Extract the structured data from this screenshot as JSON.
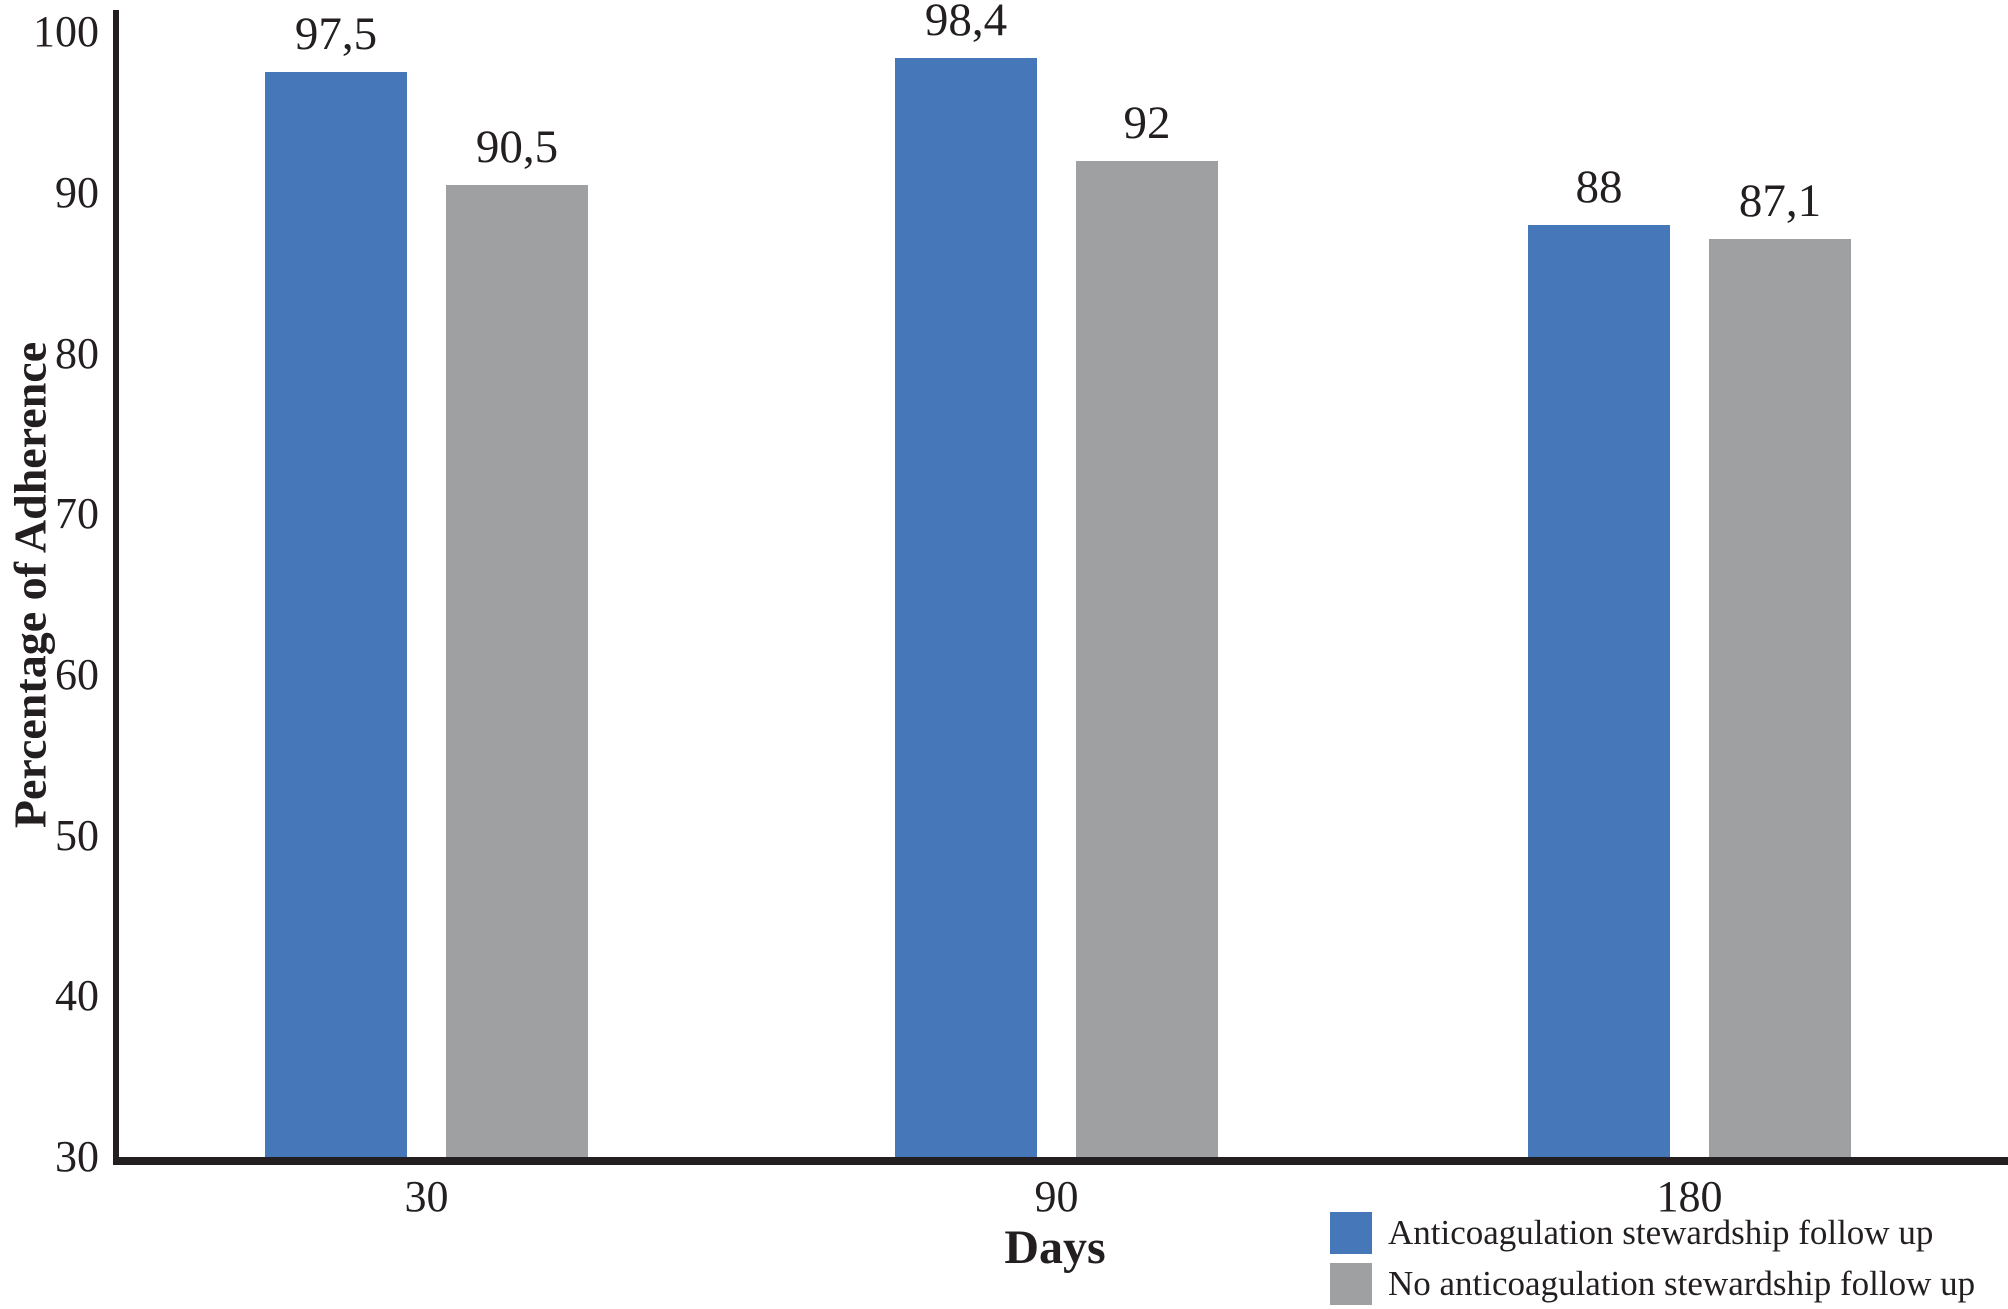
{
  "chart_data": {
    "type": "bar",
    "xlabel": "Days",
    "ylabel": "Percentage of Adherence",
    "categories": [
      "30",
      "90",
      "180"
    ],
    "series": [
      {
        "name": "Anticoagulation stewardship follow up",
        "color": "#4677B9",
        "values": [
          97.5,
          98.4,
          88
        ],
        "value_labels": [
          "97,5",
          "98,4",
          "88"
        ]
      },
      {
        "name": "No anticoagulation stewardship follow up",
        "color": "#9EA0A2",
        "values": [
          90.5,
          92,
          87.1
        ],
        "value_labels": [
          "90,5",
          "92",
          "87,1"
        ]
      }
    ],
    "ylim": [
      30,
      100
    ],
    "yticks": [
      30,
      40,
      50,
      60,
      70,
      80,
      90,
      100
    ],
    "grid": false,
    "legend_position": "bottom-right"
  },
  "colors": {
    "axis": "#231f20",
    "text": "#231f20",
    "background": "#ffffff"
  }
}
